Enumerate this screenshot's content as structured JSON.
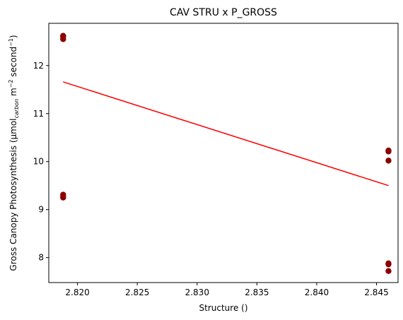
{
  "chart_data": {
    "type": "scatter",
    "title": "CAV STRU x P_GROSS",
    "xlabel": "Structure ()",
    "ylabel_parts": {
      "main": "Gross Canopy Photosynthesis (μmol",
      "sub": "carbon",
      "mid": " m",
      "sup1": "−2",
      "mid2": " second",
      "sup2": "−1",
      "end": ")"
    },
    "xlim": [
      2.8176,
      2.8468
    ],
    "ylim": [
      7.48,
      12.88
    ],
    "xticks": [
      2.82,
      2.825,
      2.83,
      2.835,
      2.84,
      2.845
    ],
    "xtick_labels": [
      "2.820",
      "2.825",
      "2.830",
      "2.835",
      "2.840",
      "2.845"
    ],
    "yticks": [
      8,
      9,
      10,
      11,
      12
    ],
    "ytick_labels": [
      "8",
      "9",
      "10",
      "11",
      "12"
    ],
    "points": {
      "color": "#8b0000",
      "x": [
        2.8188,
        2.8188,
        2.8188,
        2.8188,
        2.8188,
        2.8188,
        2.846,
        2.846,
        2.846,
        2.846,
        2.846,
        2.846
      ],
      "y": [
        12.62,
        12.6,
        12.55,
        9.31,
        9.27,
        9.25,
        10.23,
        10.21,
        10.02,
        7.88,
        7.86,
        7.72
      ]
    },
    "fit_line": {
      "color": "#ff0000",
      "x": [
        2.8188,
        2.846
      ],
      "y": [
        11.66,
        9.5
      ]
    },
    "grid": false,
    "legend": "none"
  }
}
